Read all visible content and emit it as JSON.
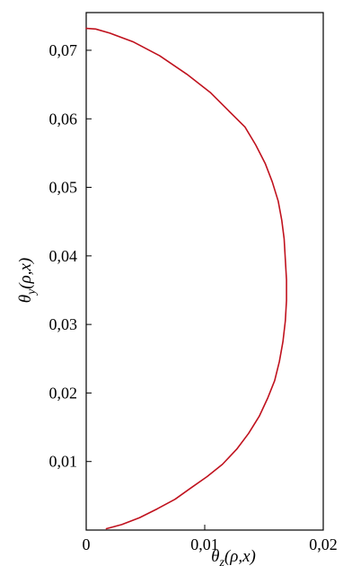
{
  "chart_data": {
    "type": "line",
    "title": "",
    "xlabel": "θz(ρ,x)",
    "ylabel": "θy(ρ,x)",
    "xlabel_base": "θ",
    "xlabel_sub": "z",
    "xlabel_args": "(ρ,x)",
    "ylabel_base": "θ",
    "ylabel_sub": "y",
    "ylabel_args": "(ρ,x)",
    "xlim": [
      0,
      0.02
    ],
    "ylim": [
      0,
      0.0755
    ],
    "x_ticks": [
      {
        "value": 0,
        "label": "0"
      },
      {
        "value": 0.01,
        "label": "0,01"
      },
      {
        "value": 0.02,
        "label": "0,02"
      }
    ],
    "y_ticks": [
      {
        "value": 0.01,
        "label": "0,01"
      },
      {
        "value": 0.02,
        "label": "0,02"
      },
      {
        "value": 0.03,
        "label": "0,03"
      },
      {
        "value": 0.04,
        "label": "0,04"
      },
      {
        "value": 0.05,
        "label": "0,05"
      },
      {
        "value": 0.06,
        "label": "0,06"
      },
      {
        "value": 0.07,
        "label": "0,07"
      }
    ],
    "grid": false,
    "legend": "none",
    "series": [
      {
        "color": "#c0121e",
        "x": [
          0.0017,
          0.003,
          0.0045,
          0.006,
          0.0075,
          0.0088,
          0.0102,
          0.0115,
          0.0127,
          0.0137,
          0.0146,
          0.0153,
          0.0159,
          0.0163,
          0.0166,
          0.0168,
          0.0169,
          0.0169,
          0.0168,
          0.0167,
          0.0165,
          0.0162,
          0.0157,
          0.0151,
          0.0143,
          0.0134,
          0.012,
          0.0105,
          0.0085,
          0.0062,
          0.004,
          0.002,
          0.0008,
          0.0
        ],
        "y": [
          0.0002,
          0.0008,
          0.0018,
          0.0031,
          0.0045,
          0.0061,
          0.0078,
          0.0096,
          0.0118,
          0.0141,
          0.0166,
          0.0192,
          0.0218,
          0.0246,
          0.0275,
          0.0305,
          0.0335,
          0.0365,
          0.0395,
          0.0425,
          0.0452,
          0.048,
          0.0508,
          0.0535,
          0.0562,
          0.0588,
          0.0612,
          0.0638,
          0.0665,
          0.0692,
          0.0712,
          0.0725,
          0.0731,
          0.0732
        ]
      }
    ]
  }
}
